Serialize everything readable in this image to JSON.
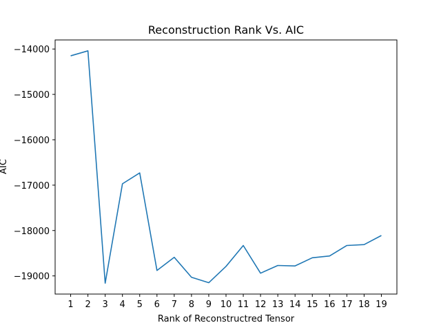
{
  "chart_data": {
    "type": "line",
    "title": "Reconstruction Rank Vs. AIC",
    "xlabel": "Rank of Reconstructred Tensor",
    "ylabel": "AIC",
    "x": [
      1,
      2,
      3,
      4,
      5,
      6,
      7,
      8,
      9,
      10,
      11,
      12,
      13,
      14,
      15,
      16,
      17,
      18,
      19
    ],
    "xticks": [
      "1",
      "2",
      "3",
      "4",
      "5",
      "6",
      "7",
      "8",
      "9",
      "10",
      "11",
      "12",
      "13",
      "14",
      "15",
      "16",
      "17",
      "18",
      "19"
    ],
    "yticks": [
      -19000,
      -18000,
      -17000,
      -16000,
      -15000,
      -14000
    ],
    "ytick_labels": [
      "−19000",
      "−18000",
      "−17000",
      "−16000",
      "−15000",
      "−14000"
    ],
    "series": [
      {
        "color": "#1f77b4",
        "values": [
          -14150,
          -14040,
          -19160,
          -16970,
          -16730,
          -18880,
          -18590,
          -19030,
          -19150,
          -18790,
          -18330,
          -18940,
          -18770,
          -18780,
          -18600,
          -18560,
          -18330,
          -18310,
          -18110
        ]
      }
    ],
    "xlim": [
      0.1,
      19.9
    ],
    "ylim": [
      -19400,
      -13800
    ],
    "grid": false,
    "legend": "none"
  }
}
